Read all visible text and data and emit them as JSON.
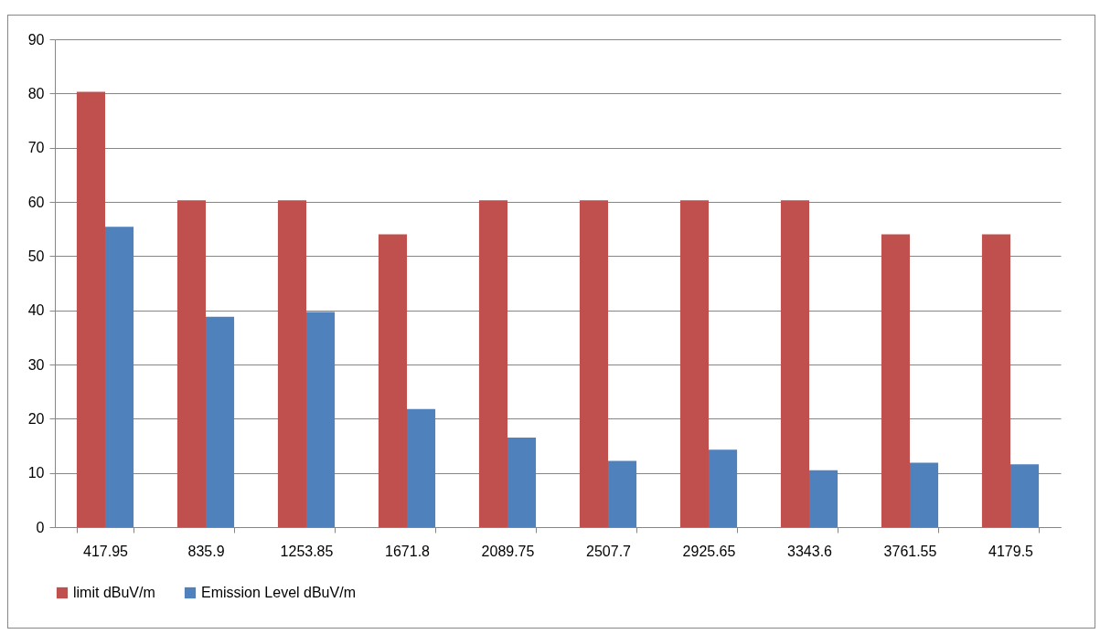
{
  "chart_data": {
    "type": "bar",
    "categories": [
      "417.95",
      "835.9",
      "1253.85",
      "1671.8",
      "2089.75",
      "2507.7",
      "2925.65",
      "3343.6",
      "3761.55",
      "4179.5"
    ],
    "series": [
      {
        "name": "limit dBuV/m",
        "color": "#c0504d",
        "values": [
          80.3,
          60.3,
          60.3,
          54,
          60.3,
          60.3,
          60.3,
          60.3,
          54,
          54
        ]
      },
      {
        "name": "Emission Level dBuV/m",
        "color": "#4f81bd",
        "values": [
          55.4,
          38.8,
          39.7,
          21.8,
          16.5,
          12.2,
          14.3,
          10.5,
          11.9,
          11.6
        ]
      }
    ],
    "ylim": [
      0,
      90
    ],
    "yticks": [
      0,
      10,
      20,
      30,
      40,
      50,
      60,
      70,
      80,
      90
    ],
    "grid": "y",
    "legend": "bottom"
  }
}
